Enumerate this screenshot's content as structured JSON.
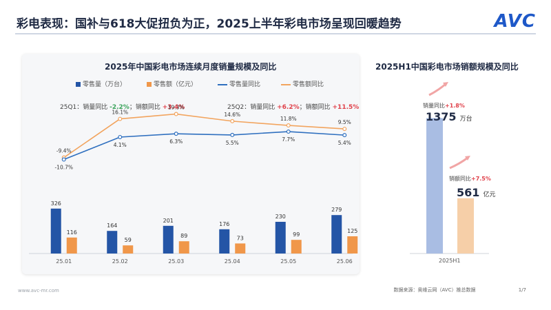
{
  "header": {
    "title": "彩电表现：国补与618大促扭负为正，2025上半年彩电市场呈现回暖趋势",
    "logo": "AVC"
  },
  "left": {
    "title": "2025年中国彩电市场连续月度销量规模及同比",
    "annotations": [
      {
        "prefix": "25Q1：销量同比 ",
        "v1": "-2.2%",
        "mid": "；销额同比 ",
        "v2": "+3.4%"
      },
      {
        "prefix": "25Q2：销量同比 ",
        "v1": "+6.2%",
        "mid": "；销额同比 ",
        "v2": "+11.5%"
      }
    ]
  },
  "right": {
    "title": "2025H1中国彩电市场销额规模及同比",
    "volume_yoy_label": "销量同比",
    "volume_yoy": "+1.8%",
    "volume_value": "1375",
    "volume_unit": "万台",
    "value_yoy_label": "销额同比",
    "value_yoy": "+7.5%",
    "value_value": "561",
    "value_unit": "亿元",
    "category": "2025H1"
  },
  "footer": {
    "left": "www.avc-mr.com",
    "source": "数据来源：奥维云网（AVC）推总数据",
    "page": "1/7"
  },
  "colors": {
    "volume": "#2455a6",
    "value": "#f0974a",
    "volume_line": "#2e6fbf",
    "value_line": "#f2a45e",
    "right_volume": "#a9bde3",
    "right_value": "#f6cfa8"
  },
  "chart_data": [
    {
      "type": "bar",
      "title": "2025年中国彩电市场连续月度销量规模及同比",
      "categories": [
        "25.01",
        "25.02",
        "25.03",
        "25.04",
        "25.05",
        "25.06"
      ],
      "series": [
        {
          "name": "零售量（万台）",
          "kind": "bar",
          "values": [
            326,
            164,
            201,
            176,
            230,
            279
          ],
          "labels": [
            "326",
            "164",
            "201",
            "176",
            "230",
            "279"
          ]
        },
        {
          "name": "零售额（亿元）",
          "kind": "bar",
          "values": [
            116,
            59,
            89,
            73,
            99,
            125
          ],
          "labels": [
            "116",
            "59",
            "89",
            "73",
            "99",
            "125"
          ]
        },
        {
          "name": "零售量同比",
          "kind": "line",
          "values": [
            -10.7,
            4.1,
            6.3,
            5.5,
            7.7,
            5.4
          ],
          "labels": [
            "-10.7%",
            "4.1%",
            "6.3%",
            "5.5%",
            "7.7%",
            "5.4%"
          ]
        },
        {
          "name": "零售额同比",
          "kind": "line",
          "values": [
            -9.4,
            16.1,
            19.3,
            14.6,
            11.8,
            9.5
          ],
          "labels": [
            "-9.4%",
            "16.1%",
            "19.3%",
            "14.6%",
            "11.8%",
            "9.5%"
          ]
        }
      ],
      "legend": "top",
      "grid": false
    },
    {
      "type": "bar",
      "title": "2025H1中国彩电市场销额规模及同比",
      "categories": [
        "2025H1"
      ],
      "series": [
        {
          "name": "销量",
          "values": [
            1375
          ]
        },
        {
          "name": "销额",
          "values": [
            561
          ]
        }
      ]
    }
  ]
}
